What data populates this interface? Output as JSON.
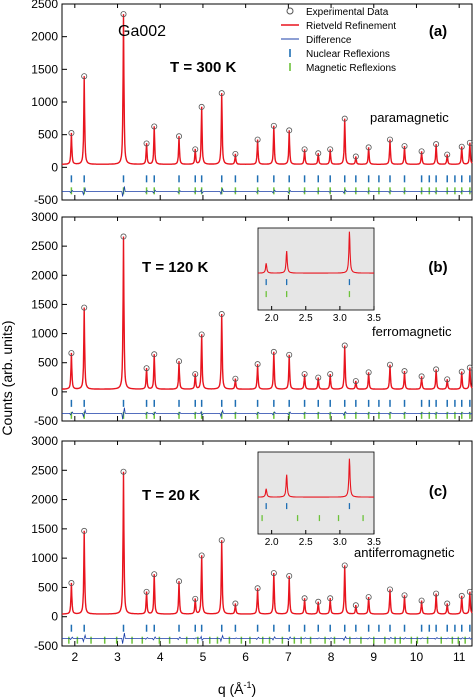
{
  "figure": {
    "ylabel": "Counts (arb. units)",
    "xlabel_main": "q (Å",
    "xlabel_sup": "-1",
    "xlabel_close": ")"
  },
  "colors": {
    "experimental": "#555555",
    "refinement": "#e8141e",
    "difference": "#1b3fa8",
    "nuclear": "#1f6fb4",
    "magnetic": "#6cc23a",
    "inset_bg": "#e6e6e6"
  },
  "legend": [
    {
      "label": "Experimental Data",
      "kind": "circle"
    },
    {
      "label": "Rietveld Refinement",
      "kind": "line-red"
    },
    {
      "label": "Difference",
      "kind": "line-blue"
    },
    {
      "label": "Nuclear Reflexions",
      "kind": "tick-blue"
    },
    {
      "label": "Magnetic Reflexions",
      "kind": "tick-green"
    }
  ],
  "chart_data": [
    {
      "type": "line",
      "panel": "(a)",
      "sample": "Ga002",
      "temperature": "T = 300 K",
      "phase": "paramagnetic",
      "xlim": [
        1.7,
        11.3
      ],
      "ylim": [
        -500,
        2500
      ],
      "xticks": [
        "2",
        "3",
        "4",
        "5",
        "6",
        "7",
        "8",
        "9",
        "10",
        "11"
      ],
      "yticks": [
        "-500",
        "0",
        "500",
        "1000",
        "1500",
        "2000",
        "2500"
      ],
      "peaks": [
        {
          "q": 1.92,
          "counts": 480
        },
        {
          "q": 2.22,
          "counts": 1350
        },
        {
          "q": 3.14,
          "counts": 2300
        },
        {
          "q": 3.68,
          "counts": 320
        },
        {
          "q": 3.86,
          "counts": 580
        },
        {
          "q": 4.44,
          "counts": 430
        },
        {
          "q": 4.82,
          "counts": 230
        },
        {
          "q": 4.97,
          "counts": 880
        },
        {
          "q": 5.44,
          "counts": 1090
        },
        {
          "q": 5.76,
          "counts": 160
        },
        {
          "q": 6.28,
          "counts": 380
        },
        {
          "q": 6.66,
          "counts": 590
        },
        {
          "q": 7.02,
          "counts": 520
        },
        {
          "q": 7.38,
          "counts": 230
        },
        {
          "q": 7.7,
          "counts": 170
        },
        {
          "q": 7.98,
          "counts": 230
        },
        {
          "q": 8.32,
          "counts": 700
        },
        {
          "q": 8.58,
          "counts": 120
        },
        {
          "q": 8.88,
          "counts": 260
        },
        {
          "q": 9.38,
          "counts": 380
        },
        {
          "q": 9.72,
          "counts": 280
        },
        {
          "q": 10.12,
          "counts": 200
        },
        {
          "q": 10.46,
          "counts": 310
        },
        {
          "q": 10.72,
          "counts": 150
        },
        {
          "q": 11.06,
          "counts": 270
        },
        {
          "q": 11.25,
          "counts": 330
        }
      ],
      "nuclear_reflexions_q": [
        1.92,
        2.22,
        3.14,
        3.68,
        3.86,
        4.44,
        4.82,
        4.97,
        5.44,
        5.76,
        6.28,
        6.66,
        7.02,
        7.38,
        7.7,
        7.98,
        8.32,
        8.58,
        8.88,
        9.12,
        9.38,
        9.72,
        10.12,
        10.3,
        10.46,
        10.72,
        10.9,
        11.06,
        11.25
      ],
      "magnetic_reflexions_q": [
        1.92,
        2.22,
        3.14,
        3.68,
        3.86,
        4.44,
        4.82,
        4.97,
        5.44,
        5.76,
        6.28,
        6.66,
        7.02,
        7.38,
        7.7,
        7.98,
        8.32,
        8.58,
        8.88,
        9.12,
        9.38,
        9.72,
        10.12,
        10.3,
        10.46,
        10.72,
        10.9,
        11.06,
        11.25
      ]
    },
    {
      "type": "line",
      "panel": "(b)",
      "temperature": "T = 120 K",
      "phase": "ferromagnetic",
      "xlim": [
        1.7,
        11.3
      ],
      "ylim": [
        -500,
        3000
      ],
      "xticks": [
        "2",
        "3",
        "4",
        "5",
        "6",
        "7",
        "8",
        "9",
        "10",
        "11"
      ],
      "yticks": [
        "-500",
        "0",
        "500",
        "1000",
        "1500",
        "2000",
        "2500",
        "3000"
      ],
      "peaks": [
        {
          "q": 1.92,
          "counts": 620
        },
        {
          "q": 2.22,
          "counts": 1400
        },
        {
          "q": 3.14,
          "counts": 2620
        },
        {
          "q": 3.68,
          "counts": 360
        },
        {
          "q": 3.86,
          "counts": 600
        },
        {
          "q": 4.44,
          "counts": 480
        },
        {
          "q": 4.82,
          "counts": 260
        },
        {
          "q": 4.97,
          "counts": 940
        },
        {
          "q": 5.44,
          "counts": 1290
        },
        {
          "q": 5.76,
          "counts": 180
        },
        {
          "q": 6.28,
          "counts": 430
        },
        {
          "q": 6.66,
          "counts": 640
        },
        {
          "q": 7.02,
          "counts": 590
        },
        {
          "q": 7.38,
          "counts": 260
        },
        {
          "q": 7.7,
          "counts": 200
        },
        {
          "q": 7.98,
          "counts": 260
        },
        {
          "q": 8.32,
          "counts": 750
        },
        {
          "q": 8.58,
          "counts": 140
        },
        {
          "q": 8.88,
          "counts": 290
        },
        {
          "q": 9.38,
          "counts": 420
        },
        {
          "q": 9.72,
          "counts": 310
        },
        {
          "q": 10.12,
          "counts": 220
        },
        {
          "q": 10.46,
          "counts": 340
        },
        {
          "q": 10.72,
          "counts": 170
        },
        {
          "q": 11.06,
          "counts": 300
        },
        {
          "q": 11.25,
          "counts": 370
        }
      ],
      "nuclear_reflexions_q": [
        1.92,
        2.22,
        3.14,
        3.68,
        3.86,
        4.44,
        4.82,
        4.97,
        5.44,
        5.76,
        6.28,
        6.66,
        7.02,
        7.38,
        7.7,
        7.98,
        8.32,
        8.58,
        8.88,
        9.12,
        9.38,
        9.72,
        10.12,
        10.3,
        10.46,
        10.72,
        10.9,
        11.06,
        11.25
      ],
      "magnetic_reflexions_q": [
        1.92,
        2.22,
        3.14,
        3.68,
        3.86,
        4.44,
        4.82,
        4.97,
        5.44,
        5.76,
        6.28,
        6.66,
        7.02,
        7.38,
        7.7,
        7.98,
        8.32,
        8.58,
        8.88,
        9.12,
        9.38,
        9.72,
        10.12,
        10.3,
        10.46,
        10.72,
        10.9,
        11.06,
        11.25
      ],
      "inset": {
        "xlim": [
          1.8,
          3.5
        ],
        "xticks": [
          "2.0",
          "2.5",
          "3.0",
          "3.5"
        ],
        "peaks": [
          {
            "q": 1.92,
            "counts": 620
          },
          {
            "q": 2.22,
            "counts": 1400
          },
          {
            "q": 3.14,
            "counts": 2620
          }
        ],
        "nuclear_reflexions_q": [
          1.92,
          2.22,
          3.14
        ],
        "magnetic_reflexions_q": [
          1.92,
          2.22,
          3.14
        ]
      }
    },
    {
      "type": "line",
      "panel": "(c)",
      "temperature": "T = 20 K",
      "phase": "antiferromagnetic",
      "xlim": [
        1.7,
        11.3
      ],
      "ylim": [
        -500,
        3000
      ],
      "xticks": [
        "2",
        "3",
        "4",
        "5",
        "6",
        "7",
        "8",
        "9",
        "10",
        "11"
      ],
      "yticks": [
        "-500",
        "0",
        "500",
        "1000",
        "1500",
        "2000",
        "2500",
        "3000"
      ],
      "peaks": [
        {
          "q": 1.92,
          "counts": 530
        },
        {
          "q": 2.22,
          "counts": 1420
        },
        {
          "q": 3.14,
          "counts": 2430
        },
        {
          "q": 3.68,
          "counts": 380
        },
        {
          "q": 3.86,
          "counts": 680
        },
        {
          "q": 4.44,
          "counts": 560
        },
        {
          "q": 4.82,
          "counts": 260
        },
        {
          "q": 4.97,
          "counts": 1000
        },
        {
          "q": 5.44,
          "counts": 1260
        },
        {
          "q": 5.76,
          "counts": 180
        },
        {
          "q": 6.28,
          "counts": 440
        },
        {
          "q": 6.66,
          "counts": 700
        },
        {
          "q": 7.02,
          "counts": 650
        },
        {
          "q": 7.38,
          "counts": 270
        },
        {
          "q": 7.7,
          "counts": 210
        },
        {
          "q": 7.98,
          "counts": 270
        },
        {
          "q": 8.32,
          "counts": 830
        },
        {
          "q": 8.58,
          "counts": 150
        },
        {
          "q": 8.88,
          "counts": 290
        },
        {
          "q": 9.38,
          "counts": 420
        },
        {
          "q": 9.72,
          "counts": 320
        },
        {
          "q": 10.12,
          "counts": 230
        },
        {
          "q": 10.46,
          "counts": 350
        },
        {
          "q": 10.72,
          "counts": 180
        },
        {
          "q": 11.06,
          "counts": 310
        },
        {
          "q": 11.25,
          "counts": 380
        }
      ],
      "nuclear_reflexions_q": [
        1.92,
        2.22,
        3.14,
        3.68,
        3.86,
        4.44,
        4.82,
        4.97,
        5.44,
        5.76,
        6.28,
        6.66,
        7.02,
        7.38,
        7.7,
        7.98,
        8.32,
        8.58,
        8.88,
        9.12,
        9.38,
        9.72,
        10.12,
        10.3,
        10.46,
        10.72,
        10.9,
        11.06,
        11.25
      ],
      "magnetic_reflexions_q": [
        1.86,
        2.06,
        2.38,
        2.7,
        2.98,
        3.34,
        3.58,
        3.98,
        4.22,
        4.62,
        4.88,
        5.16,
        5.34,
        5.62,
        5.9,
        6.1,
        6.4,
        6.56,
        6.86,
        7.14,
        7.3,
        7.52,
        7.86,
        8.08,
        8.44,
        8.7,
        9.0,
        9.26,
        9.5,
        9.62,
        9.88,
        10.02,
        10.26,
        10.58,
        10.84,
        10.98,
        11.14
      ],
      "inset": {
        "xlim": [
          1.8,
          3.5
        ],
        "xticks": [
          "2.0",
          "2.5",
          "3.0",
          "3.5"
        ],
        "peaks": [
          {
            "q": 1.92,
            "counts": 530
          },
          {
            "q": 2.22,
            "counts": 1420
          },
          {
            "q": 3.14,
            "counts": 2430
          }
        ],
        "nuclear_reflexions_q": [
          1.92,
          2.22,
          3.14
        ],
        "magnetic_reflexions_q": [
          1.86,
          2.38,
          2.7,
          2.98,
          3.34
        ]
      }
    }
  ]
}
